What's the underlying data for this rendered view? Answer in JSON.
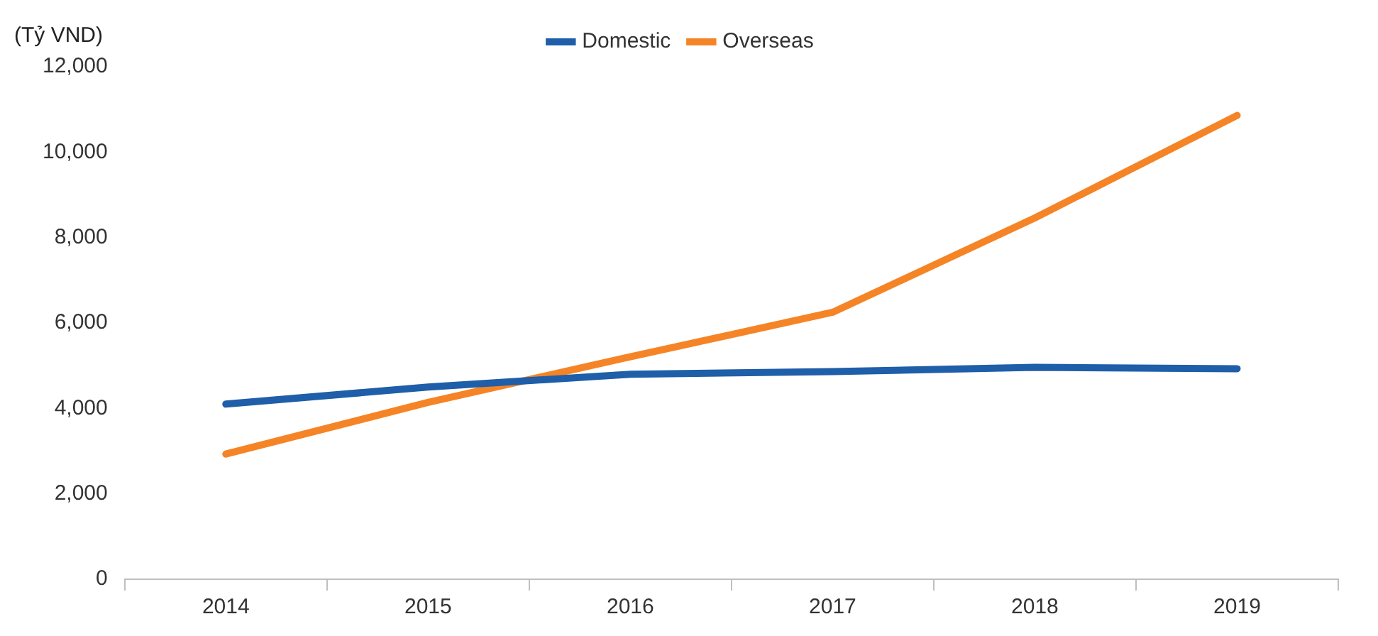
{
  "chart_data": {
    "type": "line",
    "ylabel": "(Tỷ VND)",
    "categories": [
      "2014",
      "2015",
      "2016",
      "2017",
      "2018",
      "2019"
    ],
    "series": [
      {
        "name": "Domestic",
        "color": "#1f5ea8",
        "values": [
          4100,
          4500,
          4800,
          4860,
          4960,
          4930
        ]
      },
      {
        "name": "Overseas",
        "color": "#f58426",
        "values": [
          2930,
          4140,
          5210,
          6250,
          8460,
          10860
        ]
      }
    ],
    "ylim": [
      0,
      12000
    ],
    "yticks": [
      0,
      {
        "value": 2000,
        "label": "2,000"
      },
      {
        "value": 4000,
        "label": "4,000"
      },
      {
        "value": 6000,
        "label": "6,000"
      },
      {
        "value": 8000,
        "label": "8,000"
      },
      {
        "value": 10000,
        "label": "10,000"
      },
      {
        "value": 12000,
        "label": "12,000"
      }
    ],
    "grid": false,
    "legend": "top",
    "marker": "none",
    "line_style": "solid"
  }
}
